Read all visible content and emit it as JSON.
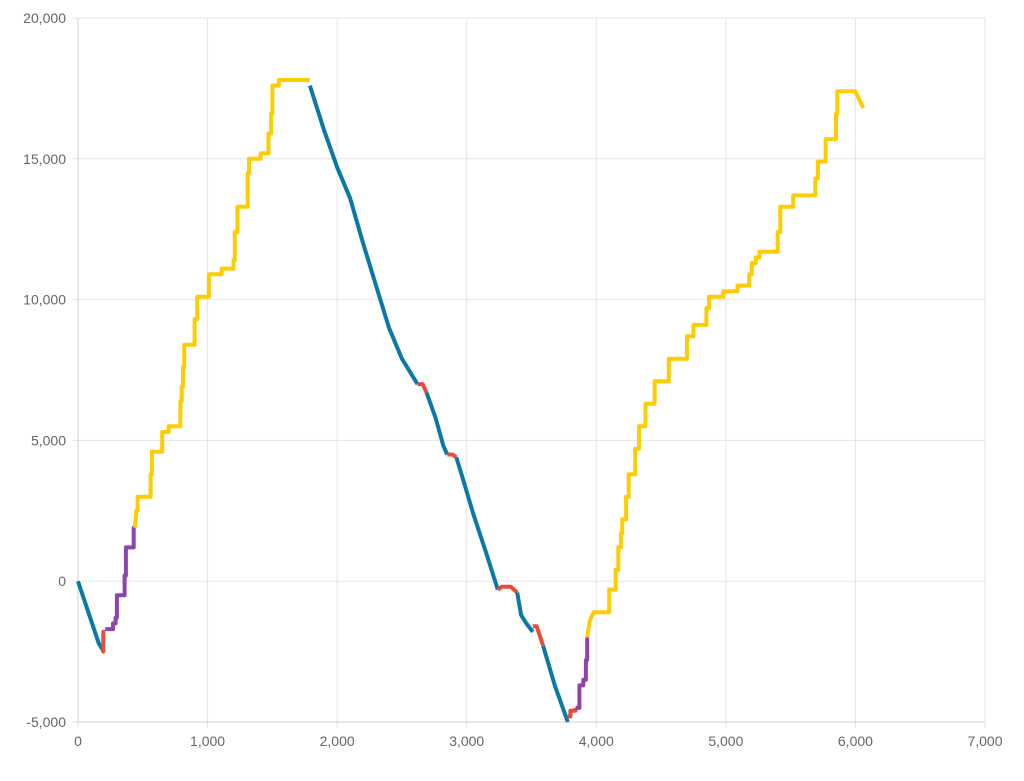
{
  "chart_data": {
    "type": "line",
    "title": "",
    "xlabel": "",
    "ylabel": "",
    "xlim": [
      0,
      7000
    ],
    "ylim": [
      -5000,
      20000
    ],
    "x_ticks": [
      0,
      1000,
      2000,
      3000,
      4000,
      5000,
      6000,
      7000
    ],
    "x_tick_labels": [
      "0",
      "1,000",
      "2,000",
      "3,000",
      "4,000",
      "5,000",
      "6,000",
      "7,000"
    ],
    "y_ticks": [
      -5000,
      0,
      5000,
      10000,
      15000,
      20000
    ],
    "y_tick_labels": [
      "-5,000",
      "0",
      "5,000",
      "10,000",
      "15,000",
      "20,000"
    ],
    "grid": true,
    "legend": "none",
    "colors": {
      "blue": "#0a78a8",
      "red": "#e74c3c",
      "purple": "#8e44ad",
      "yellow": "#ffcc00",
      "grid": "#e5e5e5",
      "tick_text": "#666666"
    },
    "segments": [
      {
        "color": "blue",
        "points": [
          [
            0,
            0
          ],
          [
            160,
            -2200
          ],
          [
            185,
            -2400
          ]
        ]
      },
      {
        "color": "red",
        "points": [
          [
            185,
            -2400
          ],
          [
            195,
            -2500
          ],
          [
            195,
            -1800
          ],
          [
            210,
            -1800
          ]
        ]
      },
      {
        "color": "purple",
        "points": [
          [
            210,
            -1700
          ],
          [
            270,
            -1700
          ],
          [
            270,
            -1500
          ],
          [
            290,
            -1500
          ],
          [
            290,
            -1300
          ],
          [
            300,
            -1300
          ],
          [
            300,
            -500
          ],
          [
            360,
            -500
          ],
          [
            360,
            200
          ],
          [
            370,
            200
          ],
          [
            370,
            1200
          ],
          [
            430,
            1200
          ],
          [
            430,
            1900
          ],
          [
            440,
            1900
          ]
        ]
      },
      {
        "color": "yellow",
        "points": [
          [
            440,
            1900
          ],
          [
            450,
            2500
          ],
          [
            460,
            2500
          ],
          [
            460,
            3000
          ],
          [
            560,
            3000
          ],
          [
            560,
            3800
          ],
          [
            570,
            3800
          ],
          [
            570,
            4600
          ],
          [
            650,
            4600
          ],
          [
            650,
            5300
          ],
          [
            700,
            5300
          ],
          [
            700,
            5500
          ],
          [
            790,
            5500
          ],
          [
            790,
            6400
          ],
          [
            800,
            6400
          ],
          [
            800,
            6900
          ],
          [
            810,
            6900
          ],
          [
            810,
            7600
          ],
          [
            820,
            7600
          ],
          [
            820,
            8400
          ],
          [
            900,
            8400
          ],
          [
            900,
            9300
          ],
          [
            920,
            9300
          ],
          [
            920,
            10100
          ],
          [
            1010,
            10100
          ],
          [
            1010,
            10900
          ],
          [
            1110,
            10900
          ],
          [
            1110,
            11100
          ],
          [
            1200,
            11100
          ],
          [
            1200,
            11400
          ],
          [
            1210,
            11400
          ],
          [
            1210,
            12400
          ],
          [
            1230,
            12400
          ],
          [
            1230,
            13300
          ],
          [
            1310,
            13300
          ],
          [
            1310,
            14500
          ],
          [
            1320,
            14500
          ],
          [
            1320,
            15000
          ],
          [
            1410,
            15000
          ],
          [
            1410,
            15200
          ],
          [
            1470,
            15200
          ],
          [
            1470,
            15900
          ],
          [
            1490,
            15900
          ],
          [
            1490,
            16600
          ],
          [
            1500,
            16600
          ],
          [
            1500,
            17600
          ],
          [
            1550,
            17600
          ],
          [
            1550,
            17800
          ],
          [
            1710,
            17800
          ],
          [
            1710,
            17800
          ],
          [
            1790,
            17800
          ]
        ]
      },
      {
        "color": "blue",
        "points": [
          [
            1790,
            17600
          ],
          [
            1900,
            16000
          ],
          [
            2000,
            14700
          ],
          [
            2100,
            13600
          ],
          [
            2200,
            12000
          ],
          [
            2300,
            10500
          ],
          [
            2400,
            9000
          ],
          [
            2500,
            7900
          ],
          [
            2620,
            7000
          ]
        ]
      },
      {
        "color": "red",
        "points": [
          [
            2620,
            7000
          ],
          [
            2660,
            7000
          ],
          [
            2690,
            6700
          ]
        ]
      },
      {
        "color": "blue",
        "points": [
          [
            2690,
            6700
          ],
          [
            2760,
            5800
          ],
          [
            2820,
            4800
          ],
          [
            2850,
            4500
          ]
        ]
      },
      {
        "color": "red",
        "points": [
          [
            2850,
            4500
          ],
          [
            2890,
            4500
          ],
          [
            2920,
            4400
          ]
        ]
      },
      {
        "color": "blue",
        "points": [
          [
            2920,
            4400
          ],
          [
            2960,
            3800
          ],
          [
            3050,
            2400
          ],
          [
            3150,
            1000
          ],
          [
            3240,
            -300
          ]
        ]
      },
      {
        "color": "red",
        "points": [
          [
            3240,
            -300
          ],
          [
            3270,
            -200
          ],
          [
            3340,
            -200
          ],
          [
            3390,
            -400
          ]
        ]
      },
      {
        "color": "blue",
        "points": [
          [
            3390,
            -400
          ],
          [
            3420,
            -1200
          ],
          [
            3460,
            -1500
          ],
          [
            3510,
            -1800
          ]
        ]
      },
      {
        "color": "red",
        "points": [
          [
            3510,
            -1600
          ],
          [
            3540,
            -1600
          ],
          [
            3590,
            -2300
          ]
        ]
      },
      {
        "color": "blue",
        "points": [
          [
            3590,
            -2300
          ],
          [
            3680,
            -3700
          ],
          [
            3780,
            -5000
          ]
        ]
      },
      {
        "color": "red",
        "points": [
          [
            3780,
            -4800
          ],
          [
            3800,
            -4800
          ],
          [
            3800,
            -4600
          ],
          [
            3840,
            -4600
          ],
          [
            3840,
            -4500
          ]
        ]
      },
      {
        "color": "purple",
        "points": [
          [
            3840,
            -4500
          ],
          [
            3870,
            -4500
          ],
          [
            3870,
            -3700
          ],
          [
            3900,
            -3700
          ],
          [
            3900,
            -3500
          ],
          [
            3920,
            -3500
          ],
          [
            3920,
            -2800
          ],
          [
            3930,
            -2800
          ],
          [
            3930,
            -2000
          ]
        ]
      },
      {
        "color": "yellow",
        "points": [
          [
            3930,
            -2000
          ],
          [
            3950,
            -1400
          ],
          [
            3980,
            -1100
          ],
          [
            4100,
            -1100
          ],
          [
            4100,
            -300
          ],
          [
            4150,
            -300
          ],
          [
            4150,
            400
          ],
          [
            4170,
            400
          ],
          [
            4170,
            1200
          ],
          [
            4190,
            1200
          ],
          [
            4190,
            1700
          ],
          [
            4200,
            1700
          ],
          [
            4200,
            2200
          ],
          [
            4230,
            2200
          ],
          [
            4230,
            3000
          ],
          [
            4250,
            3000
          ],
          [
            4250,
            3800
          ],
          [
            4300,
            3800
          ],
          [
            4300,
            4700
          ],
          [
            4330,
            4700
          ],
          [
            4330,
            5500
          ],
          [
            4380,
            5500
          ],
          [
            4380,
            6300
          ],
          [
            4450,
            6300
          ],
          [
            4450,
            7100
          ],
          [
            4560,
            7100
          ],
          [
            4560,
            7900
          ],
          [
            4700,
            7900
          ],
          [
            4700,
            8700
          ],
          [
            4750,
            8700
          ],
          [
            4750,
            9100
          ],
          [
            4850,
            9100
          ],
          [
            4850,
            9700
          ],
          [
            4870,
            9700
          ],
          [
            4870,
            10100
          ],
          [
            4980,
            10100
          ],
          [
            4980,
            10300
          ],
          [
            5090,
            10300
          ],
          [
            5090,
            10500
          ],
          [
            5180,
            10500
          ],
          [
            5180,
            10900
          ],
          [
            5200,
            10900
          ],
          [
            5200,
            11300
          ],
          [
            5230,
            11300
          ],
          [
            5230,
            11500
          ],
          [
            5260,
            11500
          ],
          [
            5260,
            11700
          ],
          [
            5400,
            11700
          ],
          [
            5400,
            12400
          ],
          [
            5420,
            12400
          ],
          [
            5420,
            13300
          ],
          [
            5520,
            13300
          ],
          [
            5520,
            13700
          ],
          [
            5690,
            13700
          ],
          [
            5690,
            14300
          ],
          [
            5710,
            14300
          ],
          [
            5710,
            14900
          ],
          [
            5770,
            14900
          ],
          [
            5770,
            15700
          ],
          [
            5850,
            15700
          ],
          [
            5850,
            16600
          ],
          [
            5860,
            16600
          ],
          [
            5860,
            17400
          ],
          [
            5980,
            17400
          ],
          [
            5980,
            17400
          ],
          [
            6000,
            17400
          ],
          [
            6060,
            16800
          ]
        ]
      }
    ]
  }
}
